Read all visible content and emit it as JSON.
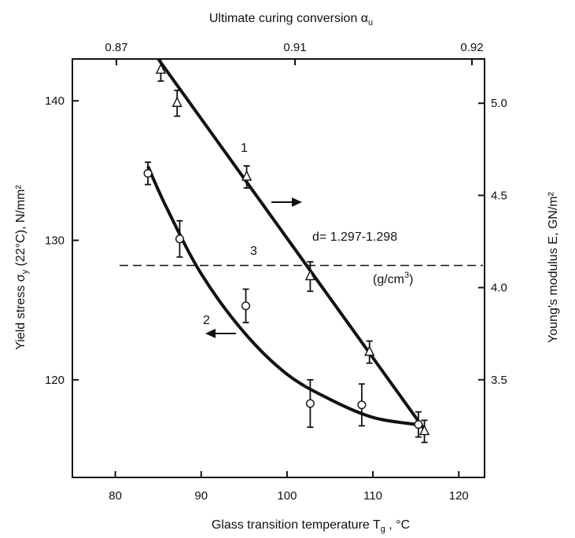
{
  "chart_data": {
    "type": "scatter",
    "axes": {
      "bottom": {
        "label": "Glass transition temperature T_g ,   °C",
        "ticks": [
          80,
          90,
          100,
          110,
          120
        ],
        "range": [
          75,
          123
        ]
      },
      "top": {
        "label": "Ultimate curing conversion α_u",
        "ticks": [
          "0.87",
          "0.91",
          "0.92"
        ]
      },
      "left": {
        "label": "Yield stress σ_y (22°C),   N/mm²",
        "ticks": [
          120,
          130,
          140
        ],
        "range": [
          113,
          143
        ]
      },
      "right": {
        "label": "Young's modulus E,  GN/m²",
        "ticks": [
          "3.5",
          "4.0",
          "4.5",
          "5.0"
        ],
        "range": [
          2.97,
          5.24
        ]
      }
    },
    "series": [
      {
        "name": "1",
        "axis": "right",
        "marker": "triangle",
        "points": [
          {
            "x": 85.3,
            "y": 5.18,
            "err": 0.06
          },
          {
            "x": 87.2,
            "y": 5.0,
            "err": 0.07
          },
          {
            "x": 95.3,
            "y": 4.6,
            "err": 0.06
          },
          {
            "x": 102.7,
            "y": 4.06,
            "err": 0.08
          },
          {
            "x": 109.6,
            "y": 3.65,
            "err": 0.06
          },
          {
            "x": 116.0,
            "y": 3.22,
            "err": 0.06
          }
        ],
        "fit": [
          [
            85,
            5.24
          ],
          [
            116,
            3.23
          ]
        ]
      },
      {
        "name": "2",
        "axis": "left",
        "marker": "circle",
        "points": [
          {
            "x": 83.8,
            "y": 134.8,
            "err": 0.8
          },
          {
            "x": 87.5,
            "y": 130.1,
            "err": 1.3
          },
          {
            "x": 95.2,
            "y": 125.3,
            "err": 1.2
          },
          {
            "x": 102.7,
            "y": 118.3,
            "err": 1.7
          },
          {
            "x": 108.7,
            "y": 118.2,
            "err": 1.5
          },
          {
            "x": 115.3,
            "y": 116.8,
            "err": 0.9
          }
        ],
        "fit": [
          [
            83.8,
            135.3
          ],
          [
            86,
            132.3
          ],
          [
            90,
            127.6
          ],
          [
            95,
            123.4
          ],
          [
            100,
            120.4
          ],
          [
            105,
            118.6
          ],
          [
            110,
            117.3
          ],
          [
            115,
            116.8
          ]
        ]
      }
    ],
    "reference_line": {
      "y": 128.2,
      "x_range": [
        75,
        123
      ],
      "style": "dashed"
    },
    "annotations": {
      "curve1": "1",
      "curve2": "2",
      "line3": "3",
      "density": "d= 1.297-1.298",
      "density_unit": "(g/cm³)"
    },
    "grid": false
  }
}
